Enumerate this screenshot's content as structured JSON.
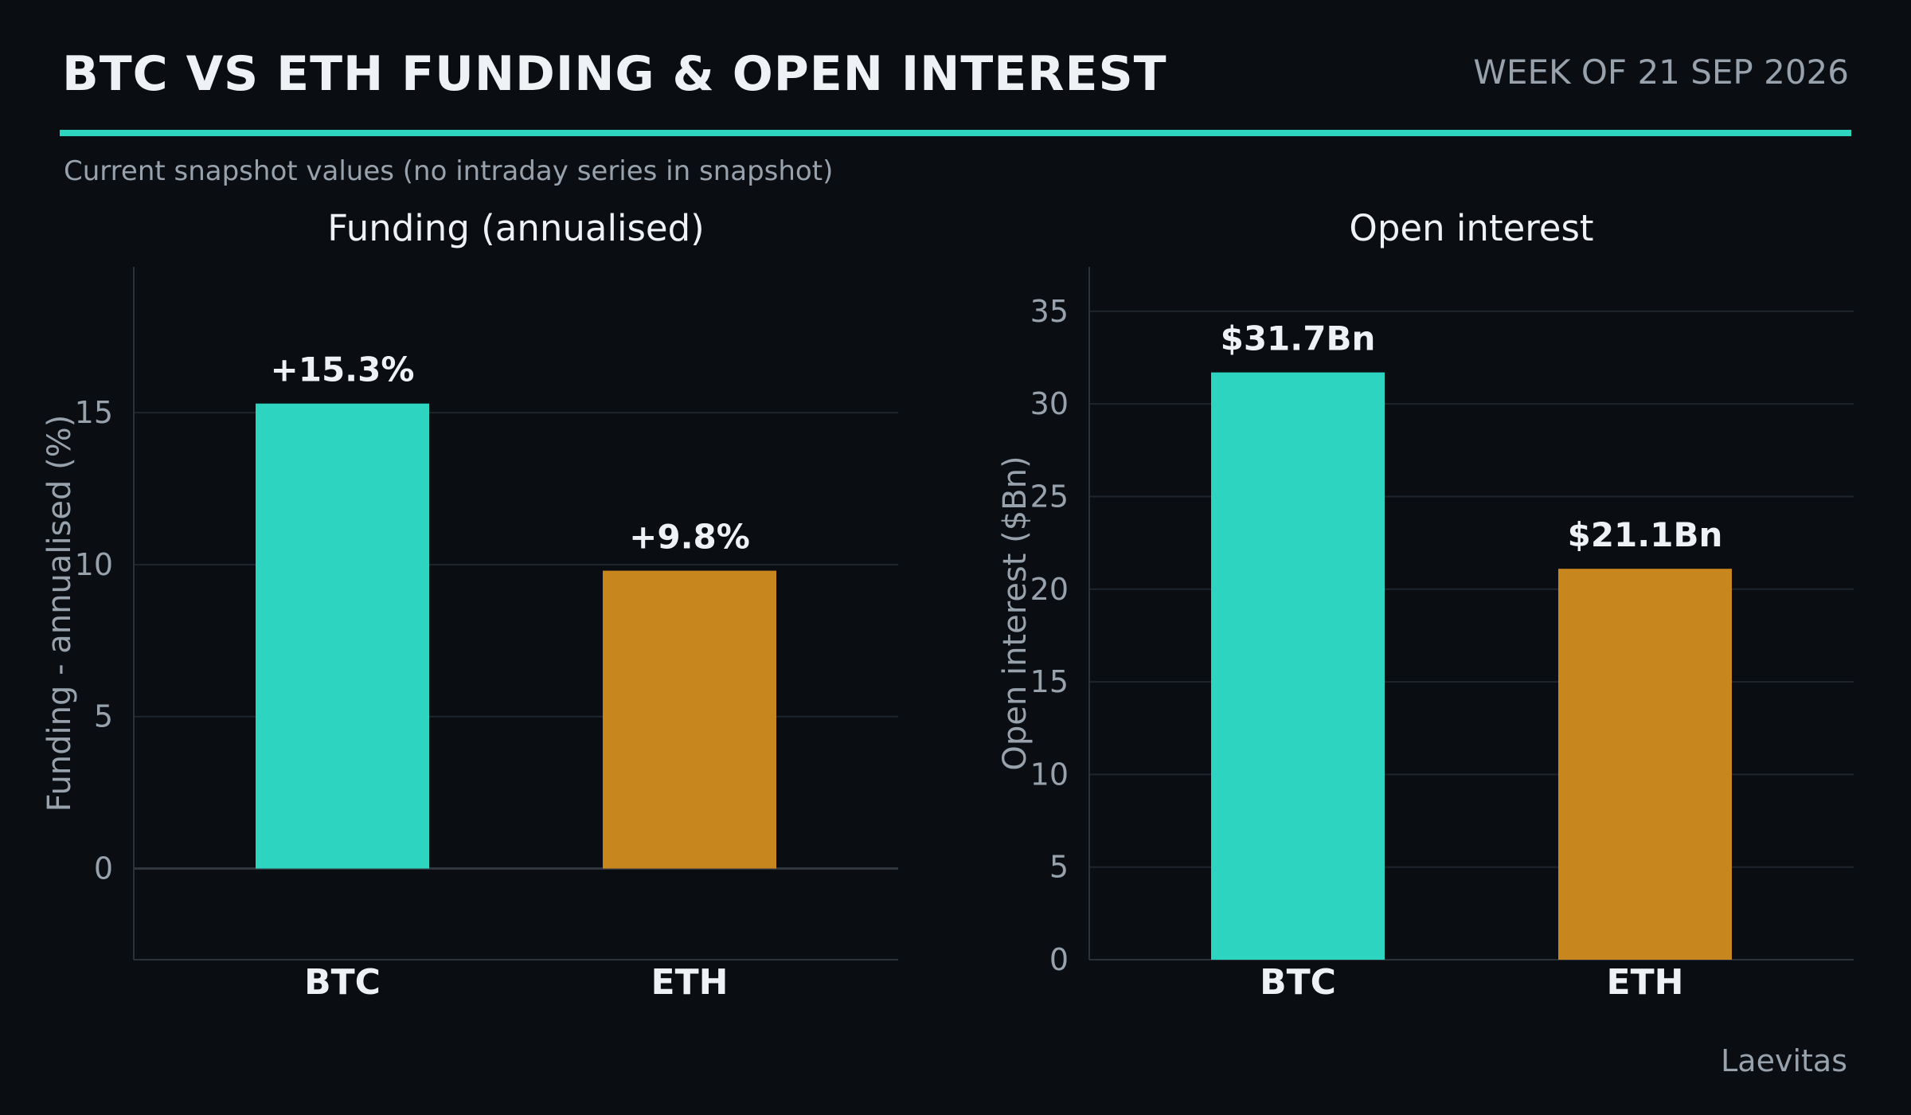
{
  "header": {
    "title": "BTC VS ETH FUNDING & OPEN INTEREST",
    "week": "WEEK OF 21 SEP 2026",
    "subtitle": "Current snapshot values (no intraday series in snapshot)",
    "source": "Laevitas"
  },
  "colors": {
    "background": "#0a0e12",
    "accent": "#2dd4bf",
    "btc": "#2dd4bf",
    "eth": "#c8871e",
    "grid": "#1e252c",
    "muted_text": "#98a2ad",
    "text": "#eef2f5"
  },
  "chart_data": [
    {
      "type": "bar",
      "title": "Funding (annualised)",
      "ylabel": "Funding - annualised (%)",
      "xlabel": "",
      "categories": [
        "BTC",
        "ETH"
      ],
      "values": [
        15.3,
        9.8
      ],
      "data_labels": [
        "+15.3%",
        "+9.8%"
      ],
      "ylim": [
        -3,
        19.8
      ],
      "yticks": [
        0,
        5,
        10,
        15
      ],
      "grid": true,
      "zero_line": true
    },
    {
      "type": "bar",
      "title": "Open interest",
      "ylabel": "Open interest ($Bn)",
      "xlabel": "",
      "categories": [
        "BTC",
        "ETH"
      ],
      "values": [
        31.7,
        21.1
      ],
      "data_labels": [
        "$31.7Bn",
        "$21.1Bn"
      ],
      "ylim": [
        0,
        37.4
      ],
      "yticks": [
        0,
        5,
        10,
        15,
        20,
        25,
        30,
        35
      ],
      "grid": true,
      "zero_line": false
    }
  ]
}
